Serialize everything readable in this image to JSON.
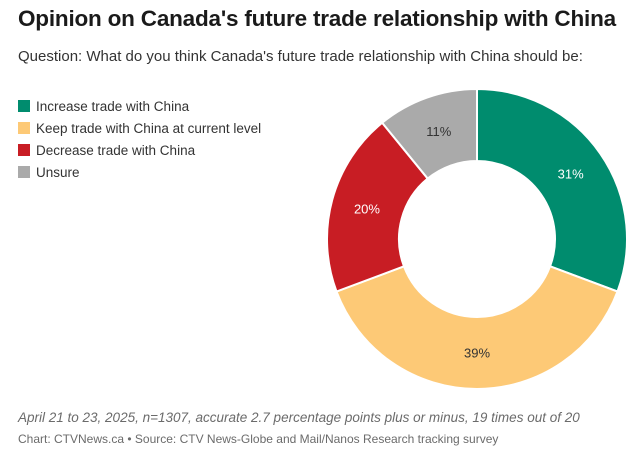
{
  "title": "Opinion on Canada's future trade relationship with China",
  "subtitle": "Question: What do you think Canada's future trade relationship with China should be:",
  "note": "April 21 to 23, 2025, n=1307, accurate 2.7 percentage points plus or minus, 19 times out of 20",
  "source": "Chart: CTVNews.ca • Source: CTV News-Globe and Mail/Nanos Research tracking survey",
  "chart_data": {
    "type": "pie",
    "variant": "donut",
    "legend_position": "top-left",
    "slices": [
      {
        "label": "Increase trade with China",
        "value": 31,
        "display": "31%",
        "color": "#008c6e"
      },
      {
        "label": "Keep trade with China at current level",
        "value": 39,
        "display": "39%",
        "color": "#fdc976"
      },
      {
        "label": "Decrease trade with China",
        "value": 20,
        "display": "20%",
        "color": "#c81d24"
      },
      {
        "label": "Unsure",
        "value": 11,
        "display": "11%",
        "color": "#aaaaaa"
      }
    ]
  }
}
